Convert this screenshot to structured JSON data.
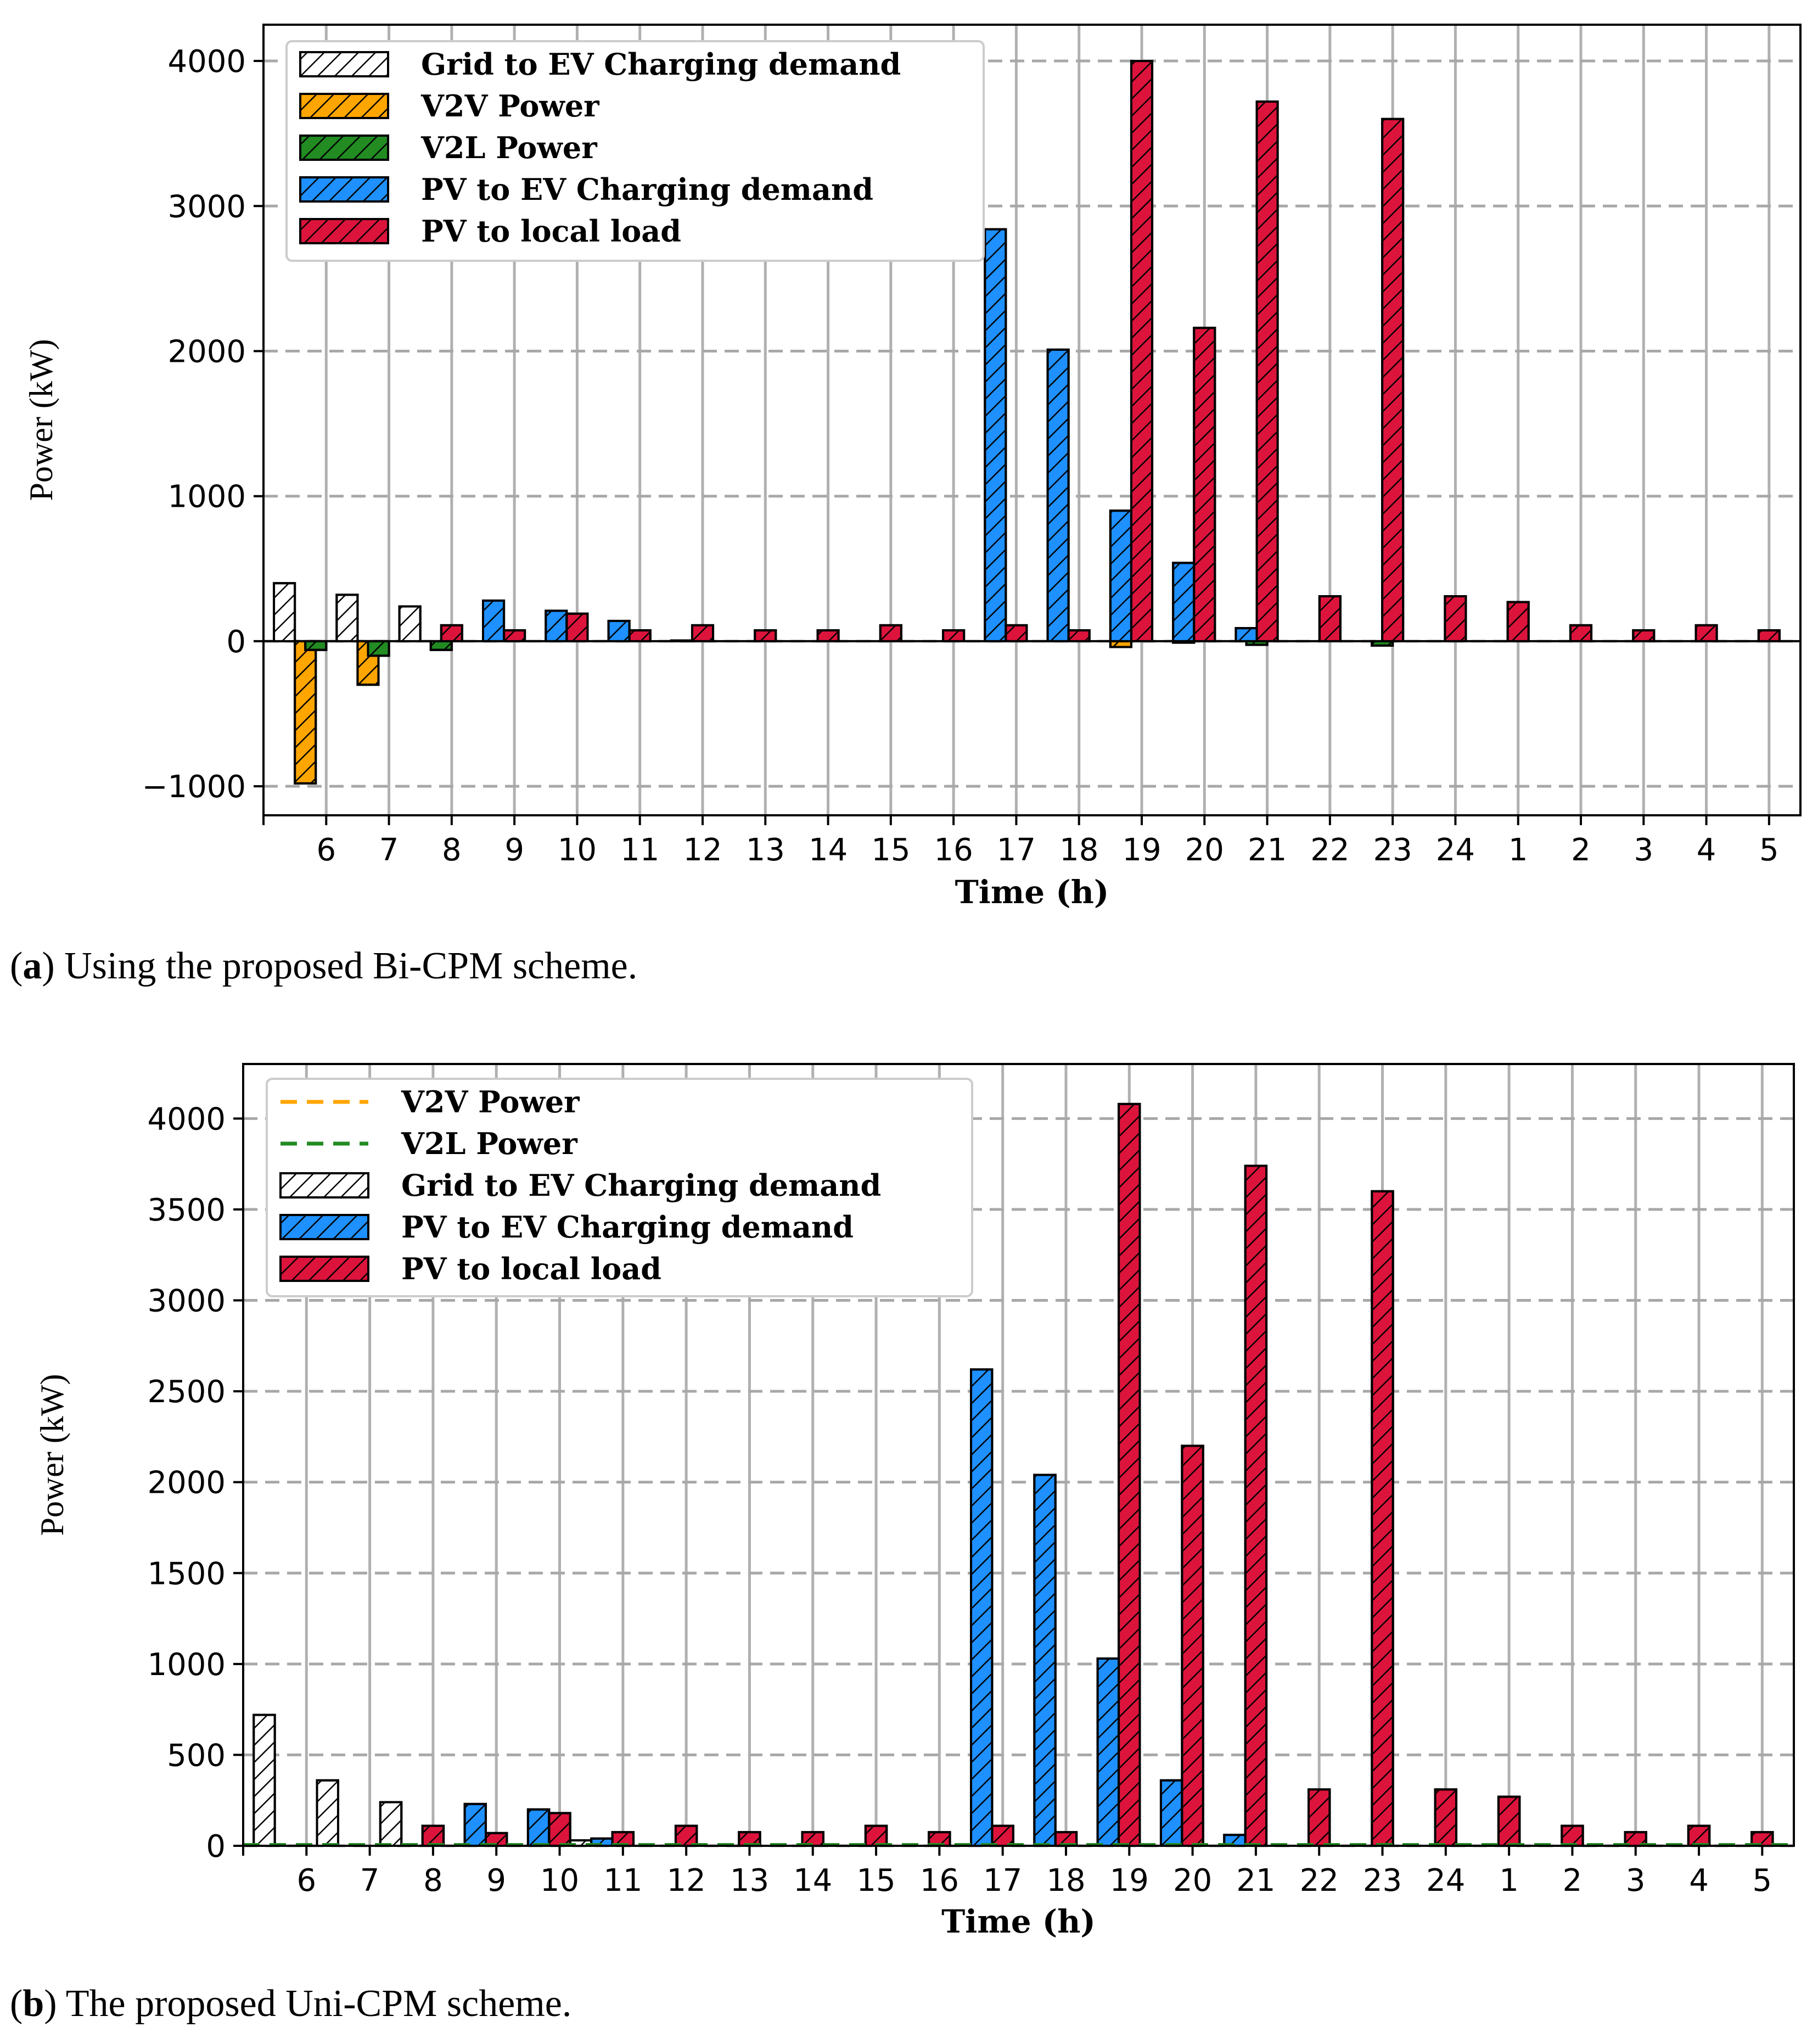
{
  "colors": {
    "grid_ev": "#ffffff",
    "v2v": "#ffa500",
    "v2l": "#228b22",
    "pv_ev": "#1e90ff",
    "pv_load": "#dc143c"
  },
  "chart_data": [
    {
      "type": "bar",
      "panel": "a",
      "xlabel": "Time (h)",
      "ylabel": "Power (kW)",
      "ylim": [
        -1200,
        4250
      ],
      "yticks": [
        -1000,
        0,
        1000,
        2000,
        3000,
        4000
      ],
      "ytick_labels": [
        "−1000",
        "0",
        "1000",
        "2000",
        "3000",
        "4000"
      ],
      "grid": true,
      "legend_position": "top-left",
      "categories": [
        "6",
        "7",
        "8",
        "9",
        "10",
        "11",
        "12",
        "13",
        "14",
        "15",
        "16",
        "17",
        "18",
        "19",
        "20",
        "21",
        "22",
        "23",
        "24",
        "1",
        "2",
        "3",
        "4",
        "5"
      ],
      "series": [
        {
          "name": "Grid to EV Charging demand",
          "key": "grid_ev",
          "values": [
            400,
            320,
            240,
            0,
            0,
            0,
            0,
            0,
            0,
            0,
            0,
            0,
            0,
            0,
            0,
            0,
            0,
            0,
            0,
            0,
            0,
            0,
            0,
            0
          ]
        },
        {
          "name": "V2V Power",
          "key": "v2v",
          "values": [
            -980,
            -300,
            0,
            0,
            0,
            0,
            0,
            0,
            0,
            0,
            0,
            0,
            0,
            -40,
            -10,
            0,
            0,
            0,
            0,
            0,
            0,
            0,
            0,
            0
          ]
        },
        {
          "name": "V2L Power",
          "key": "v2l",
          "values": [
            -60,
            -100,
            -60,
            0,
            0,
            0,
            0,
            0,
            0,
            0,
            0,
            0,
            0,
            0,
            0,
            -25,
            0,
            -30,
            0,
            0,
            0,
            0,
            0,
            0
          ]
        },
        {
          "name": "PV to EV Charging demand",
          "key": "pv_ev",
          "values": [
            0,
            0,
            0,
            280,
            210,
            140,
            5,
            0,
            0,
            0,
            0,
            2840,
            2010,
            900,
            540,
            90,
            0,
            0,
            0,
            0,
            0,
            0,
            0,
            0
          ]
        },
        {
          "name": "PV to local load",
          "key": "pv_load",
          "values": [
            0,
            0,
            110,
            75,
            190,
            75,
            110,
            75,
            75,
            110,
            75,
            110,
            75,
            4000,
            2160,
            3720,
            310,
            3600,
            310,
            270,
            110,
            75,
            110,
            75
          ]
        }
      ],
      "legend_order": [
        "Grid to EV Charging demand",
        "V2V Power",
        "V2L Power",
        "PV to EV Charging demand",
        "PV to local load"
      ]
    },
    {
      "type": "bar",
      "panel": "b",
      "xlabel": "Time (h)",
      "ylabel": "Power (kW)",
      "ylim": [
        0,
        4300
      ],
      "yticks": [
        0,
        500,
        1000,
        1500,
        2000,
        2500,
        3000,
        3500,
        4000
      ],
      "ytick_labels": [
        "0",
        "500",
        "1000",
        "1500",
        "2000",
        "2500",
        "3000",
        "3500",
        "4000"
      ],
      "grid": true,
      "legend_position": "top-left",
      "categories": [
        "6",
        "7",
        "8",
        "9",
        "10",
        "11",
        "12",
        "13",
        "14",
        "15",
        "16",
        "17",
        "18",
        "19",
        "20",
        "21",
        "22",
        "23",
        "24",
        "1",
        "2",
        "3",
        "4",
        "5"
      ],
      "series": [
        {
          "name": "Grid to EV Charging demand",
          "key": "grid_ev",
          "values": [
            720,
            360,
            240,
            0,
            0,
            30,
            0,
            0,
            0,
            0,
            0,
            0,
            0,
            0,
            0,
            0,
            0,
            0,
            0,
            0,
            0,
            0,
            0,
            0
          ]
        },
        {
          "name": "PV to EV Charging demand",
          "key": "pv_ev",
          "values": [
            0,
            0,
            0,
            230,
            200,
            40,
            0,
            0,
            0,
            0,
            0,
            2620,
            2040,
            1030,
            360,
            60,
            0,
            0,
            0,
            0,
            0,
            0,
            0,
            0
          ]
        },
        {
          "name": "PV to local load",
          "key": "pv_load",
          "values": [
            0,
            0,
            110,
            70,
            180,
            75,
            110,
            75,
            75,
            110,
            75,
            110,
            75,
            4080,
            2200,
            3740,
            310,
            3600,
            310,
            270,
            110,
            75,
            110,
            75
          ]
        }
      ],
      "lines": [
        {
          "name": "V2V Power",
          "key": "v2v",
          "value": 0
        },
        {
          "name": "V2L Power",
          "key": "v2l",
          "value": 0
        }
      ],
      "legend_order": [
        "V2V Power",
        "V2L Power",
        "Grid to EV Charging demand",
        "PV to EV Charging demand",
        "PV to local load"
      ]
    }
  ],
  "captions": {
    "a": {
      "letter": "a",
      "text": ") Using the proposed Bi-CPM scheme."
    },
    "b": {
      "letter": "b",
      "text": ") The proposed Uni-CPM scheme."
    }
  }
}
